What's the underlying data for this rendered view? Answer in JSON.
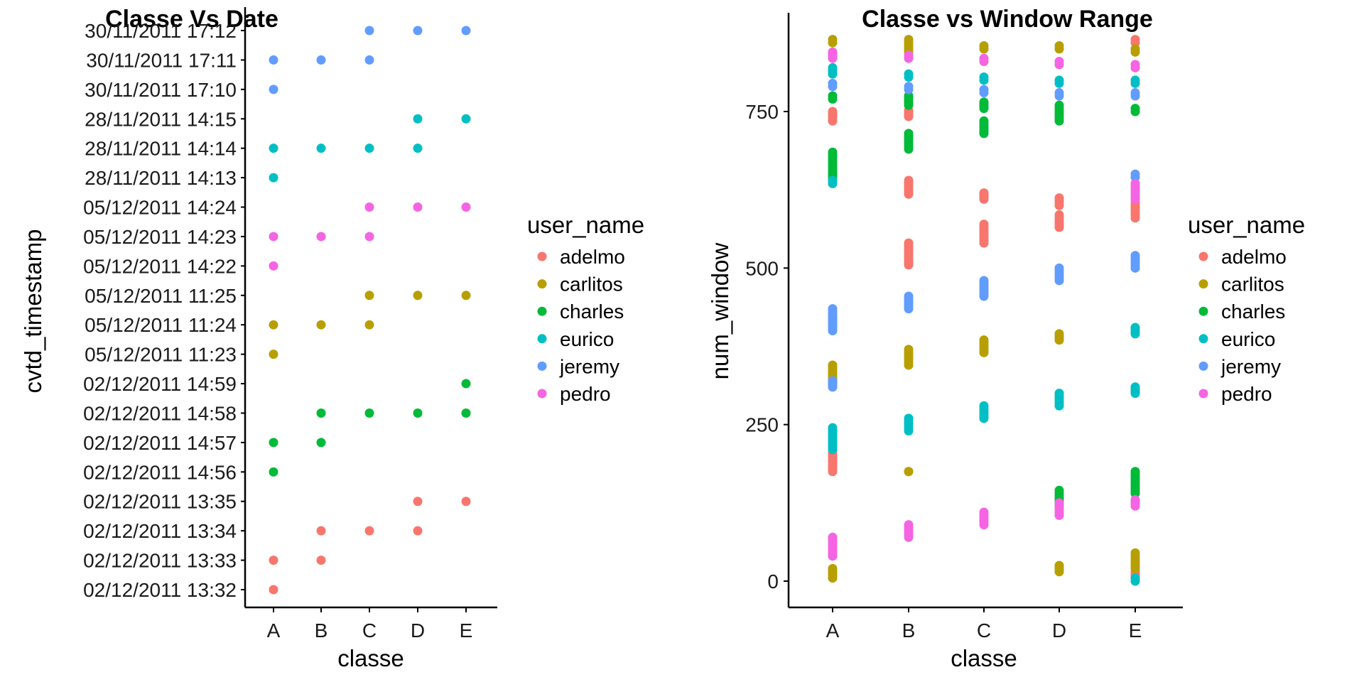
{
  "legend": {
    "title": "user_name",
    "placement": "right",
    "entries": [
      {
        "name": "adelmo",
        "color": "#F8766D"
      },
      {
        "name": "carlitos",
        "color": "#B79F00"
      },
      {
        "name": "charles",
        "color": "#00BA38"
      },
      {
        "name": "eurico",
        "color": "#00BFC4"
      },
      {
        "name": "jeremy",
        "color": "#619CFF"
      },
      {
        "name": "pedro",
        "color": "#F564E3"
      }
    ]
  },
  "chart_data": [
    {
      "type": "scatter",
      "title": "Classe Vs Date",
      "xlabel": "classe",
      "ylabel": "cvtd_timestamp",
      "grid": false,
      "categories": [
        "A",
        "B",
        "C",
        "D",
        "E"
      ],
      "y_categories": [
        "02/12/2011 13:32",
        "02/12/2011 13:33",
        "02/12/2011 13:34",
        "02/12/2011 13:35",
        "02/12/2011 14:56",
        "02/12/2011 14:57",
        "02/12/2011 14:58",
        "02/12/2011 14:59",
        "05/12/2011 11:23",
        "05/12/2011 11:24",
        "05/12/2011 11:25",
        "05/12/2011 14:22",
        "05/12/2011 14:23",
        "05/12/2011 14:24",
        "28/11/2011 14:13",
        "28/11/2011 14:14",
        "28/11/2011 14:15",
        "30/11/2011 17:10",
        "30/11/2011 17:11",
        "30/11/2011 17:12"
      ],
      "series": [
        {
          "name": "adelmo",
          "points": [
            [
              "A",
              "02/12/2011 13:32"
            ],
            [
              "A",
              "02/12/2011 13:33"
            ],
            [
              "B",
              "02/12/2011 13:33"
            ],
            [
              "B",
              "02/12/2011 13:34"
            ],
            [
              "C",
              "02/12/2011 13:34"
            ],
            [
              "D",
              "02/12/2011 13:34"
            ],
            [
              "D",
              "02/12/2011 13:35"
            ],
            [
              "E",
              "02/12/2011 13:35"
            ]
          ]
        },
        {
          "name": "carlitos",
          "points": [
            [
              "A",
              "05/12/2011 11:23"
            ],
            [
              "A",
              "05/12/2011 11:24"
            ],
            [
              "B",
              "05/12/2011 11:24"
            ],
            [
              "C",
              "05/12/2011 11:24"
            ],
            [
              "C",
              "05/12/2011 11:25"
            ],
            [
              "D",
              "05/12/2011 11:25"
            ],
            [
              "E",
              "05/12/2011 11:25"
            ]
          ]
        },
        {
          "name": "charles",
          "points": [
            [
              "A",
              "02/12/2011 14:56"
            ],
            [
              "A",
              "02/12/2011 14:57"
            ],
            [
              "B",
              "02/12/2011 14:57"
            ],
            [
              "B",
              "02/12/2011 14:58"
            ],
            [
              "C",
              "02/12/2011 14:58"
            ],
            [
              "D",
              "02/12/2011 14:58"
            ],
            [
              "E",
              "02/12/2011 14:58"
            ],
            [
              "E",
              "02/12/2011 14:59"
            ]
          ]
        },
        {
          "name": "eurico",
          "points": [
            [
              "A",
              "28/11/2011 14:13"
            ],
            [
              "A",
              "28/11/2011 14:14"
            ],
            [
              "B",
              "28/11/2011 14:14"
            ],
            [
              "C",
              "28/11/2011 14:14"
            ],
            [
              "D",
              "28/11/2011 14:14"
            ],
            [
              "D",
              "28/11/2011 14:15"
            ],
            [
              "E",
              "28/11/2011 14:15"
            ]
          ]
        },
        {
          "name": "jeremy",
          "points": [
            [
              "A",
              "30/11/2011 17:10"
            ],
            [
              "A",
              "30/11/2011 17:11"
            ],
            [
              "B",
              "30/11/2011 17:11"
            ],
            [
              "C",
              "30/11/2011 17:11"
            ],
            [
              "C",
              "30/11/2011 17:12"
            ],
            [
              "D",
              "30/11/2011 17:12"
            ],
            [
              "E",
              "30/11/2011 17:12"
            ]
          ]
        },
        {
          "name": "pedro",
          "points": [
            [
              "A",
              "05/12/2011 14:22"
            ],
            [
              "A",
              "05/12/2011 14:23"
            ],
            [
              "B",
              "05/12/2011 14:23"
            ],
            [
              "C",
              "05/12/2011 14:23"
            ],
            [
              "C",
              "05/12/2011 14:24"
            ],
            [
              "D",
              "05/12/2011 14:24"
            ],
            [
              "E",
              "05/12/2011 14:24"
            ]
          ]
        }
      ]
    },
    {
      "type": "scatter",
      "title": "Classe vs Window Range",
      "xlabel": "classe",
      "ylabel": "num_window",
      "grid": false,
      "categories": [
        "A",
        "B",
        "C",
        "D",
        "E"
      ],
      "ylim": [
        -40,
        905
      ],
      "yticks": [
        0,
        250,
        500,
        750
      ],
      "series": [
        {
          "name": "adelmo",
          "ranges": [
            [
              "A",
              175,
              205
            ],
            [
              "A",
              640,
              650
            ],
            [
              "A",
              735,
              750
            ],
            [
              "B",
              505,
              540
            ],
            [
              "B",
              618,
              640
            ],
            [
              "B",
              742,
              752
            ],
            [
              "C",
              540,
              570
            ],
            [
              "C",
              610,
              620
            ],
            [
              "D",
              565,
              585
            ],
            [
              "D",
              600,
              612
            ],
            [
              "E",
              5,
              15
            ],
            [
              "E",
              580,
              605
            ],
            [
              "E",
              860,
              865
            ]
          ]
        },
        {
          "name": "carlitos",
          "ranges": [
            [
              "A",
              5,
              20
            ],
            [
              "A",
              310,
              345
            ],
            [
              "A",
              860,
              865
            ],
            [
              "B",
              175,
              175
            ],
            [
              "B",
              345,
              370
            ],
            [
              "B",
              845,
              865
            ],
            [
              "C",
              365,
              385
            ],
            [
              "C",
              850,
              855
            ],
            [
              "D",
              15,
              25
            ],
            [
              "D",
              385,
              395
            ],
            [
              "D",
              850,
              855
            ],
            [
              "E",
              20,
              45
            ],
            [
              "E",
              845,
              850
            ]
          ]
        },
        {
          "name": "charles",
          "ranges": [
            [
              "A",
              645,
              685
            ],
            [
              "A",
              770,
              775
            ],
            [
              "B",
              690,
              715
            ],
            [
              "B",
              760,
              775
            ],
            [
              "C",
              715,
              735
            ],
            [
              "C",
              755,
              765
            ],
            [
              "D",
              120,
              145
            ],
            [
              "D",
              735,
              760
            ],
            [
              "E",
              140,
              175
            ],
            [
              "E",
              750,
              755
            ]
          ]
        },
        {
          "name": "eurico",
          "ranges": [
            [
              "A",
              210,
              245
            ],
            [
              "A",
              635,
              640
            ],
            [
              "A",
              810,
              820
            ],
            [
              "B",
              240,
              260
            ],
            [
              "B",
              805,
              810
            ],
            [
              "C",
              260,
              280
            ],
            [
              "C",
              800,
              805
            ],
            [
              "D",
              280,
              300
            ],
            [
              "D",
              795,
              800
            ],
            [
              "E",
              0,
              5
            ],
            [
              "E",
              300,
              310
            ],
            [
              "E",
              395,
              405
            ],
            [
              "E",
              795,
              800
            ]
          ]
        },
        {
          "name": "jeremy",
          "ranges": [
            [
              "A",
              310,
              320
            ],
            [
              "A",
              400,
              435
            ],
            [
              "A",
              790,
              795
            ],
            [
              "B",
              435,
              455
            ],
            [
              "B",
              785,
              790
            ],
            [
              "C",
              455,
              480
            ],
            [
              "C",
              780,
              785
            ],
            [
              "D",
              480,
              500
            ],
            [
              "D",
              775,
              780
            ],
            [
              "E",
              500,
              520
            ],
            [
              "E",
              645,
              650
            ],
            [
              "E",
              775,
              780
            ]
          ]
        },
        {
          "name": "pedro",
          "ranges": [
            [
              "A",
              40,
              70
            ],
            [
              "A",
              835,
              845
            ],
            [
              "B",
              70,
              90
            ],
            [
              "B",
              835,
              840
            ],
            [
              "C",
              90,
              110
            ],
            [
              "C",
              830,
              835
            ],
            [
              "D",
              105,
              125
            ],
            [
              "D",
              825,
              830
            ],
            [
              "E",
              120,
              130
            ],
            [
              "E",
              610,
              635
            ],
            [
              "E",
              820,
              825
            ]
          ]
        }
      ]
    }
  ]
}
